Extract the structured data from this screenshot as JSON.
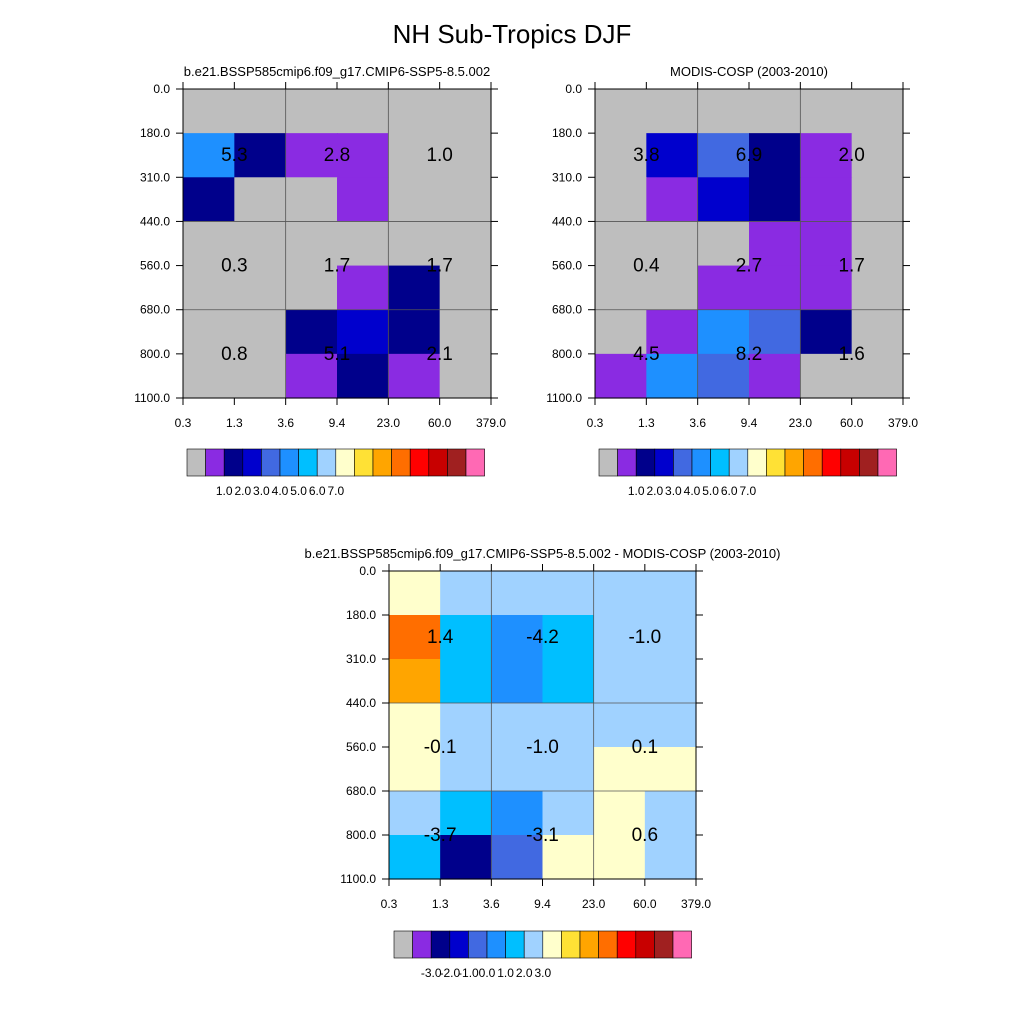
{
  "title": "NH Sub-Tropics DJF",
  "palettes": {
    "model": [
      "#bebebe",
      "#8a2be2",
      "#00008b",
      "#0000cd",
      "#4169e1",
      "#1e90ff",
      "#00bfff",
      "#a0d2ff",
      "#ffffcc",
      "#ffe135",
      "#ffa500",
      "#ff6e00",
      "#ff0000",
      "#c80000",
      "#a02020",
      "#ff69b4"
    ],
    "diff": [
      "#bebebe",
      "#8a2be2",
      "#00008b",
      "#0000cd",
      "#4169e1",
      "#1e90ff",
      "#00bfff",
      "#a0d2ff",
      "#ffffcc",
      "#ffe135",
      "#ffa500",
      "#ff6e00",
      "#ff0000",
      "#c80000",
      "#a02020",
      "#ff69b4"
    ]
  },
  "chart_data": [
    {
      "type": "heatmap",
      "title": "b.e21.BSSP585cmip6.f09_g17.CMIP6-SSP5-8.5.002",
      "x_ticks": [
        "0.3",
        "1.3",
        "3.6",
        "9.4",
        "23.0",
        "60.0",
        "379.0"
      ],
      "y_ticks": [
        "0.0",
        "180.0",
        "310.0",
        "440.0",
        "560.0",
        "680.0",
        "800.0",
        "1100.0"
      ],
      "grid": true,
      "cells": [
        [
          0,
          0,
          0,
          0,
          0,
          0
        ],
        [
          5,
          2,
          1,
          1,
          0,
          0
        ],
        [
          2,
          0,
          0,
          1,
          0,
          0
        ],
        [
          0,
          0,
          0,
          0,
          0,
          0
        ],
        [
          0,
          0,
          0,
          1,
          2,
          0
        ],
        [
          0,
          0,
          2,
          3,
          2,
          0
        ],
        [
          0,
          0,
          1,
          2,
          1,
          0
        ]
      ],
      "labels": [
        "5.3",
        "2.8",
        "1.0",
        "0.3",
        "1.7",
        "1.7",
        "0.8",
        "5.1",
        "2.1"
      ],
      "colorbar": [
        "1.0",
        "2.0",
        "3.0",
        "4.0",
        "5.0",
        "6.0",
        "7.0"
      ],
      "palette": "model"
    },
    {
      "type": "heatmap",
      "title": "MODIS-COSP (2003-2010)",
      "x_ticks": [
        "0.3",
        "1.3",
        "3.6",
        "9.4",
        "23.0",
        "60.0",
        "379.0"
      ],
      "y_ticks": [
        "0.0",
        "180.0",
        "310.0",
        "440.0",
        "560.0",
        "680.0",
        "800.0",
        "1100.0"
      ],
      "grid": true,
      "cells": [
        [
          0,
          0,
          0,
          0,
          0,
          0
        ],
        [
          0,
          3,
          4,
          2,
          1,
          0
        ],
        [
          0,
          1,
          3,
          2,
          1,
          0
        ],
        [
          0,
          0,
          0,
          1,
          1,
          0
        ],
        [
          0,
          0,
          1,
          1,
          1,
          0
        ],
        [
          0,
          1,
          5,
          4,
          2,
          0
        ],
        [
          1,
          5,
          4,
          1,
          0,
          0
        ]
      ],
      "labels": [
        "3.8",
        "6.9",
        "2.0",
        "0.4",
        "2.7",
        "1.7",
        "4.5",
        "8.2",
        "1.6"
      ],
      "colorbar": [
        "1.0",
        "2.0",
        "3.0",
        "4.0",
        "5.0",
        "6.0",
        "7.0"
      ],
      "palette": "model"
    },
    {
      "type": "heatmap",
      "title": "b.e21.BSSP585cmip6.f09_g17.CMIP6-SSP5-8.5.002 - MODIS-COSP (2003-2010)",
      "x_ticks": [
        "0.3",
        "1.3",
        "3.6",
        "9.4",
        "23.0",
        "60.0",
        "379.0"
      ],
      "y_ticks": [
        "0.0",
        "180.0",
        "310.0",
        "440.0",
        "560.0",
        "680.0",
        "800.0",
        "1100.0"
      ],
      "grid": true,
      "cells": [
        [
          8,
          7,
          7,
          7,
          7,
          7
        ],
        [
          11,
          6,
          5,
          6,
          7,
          7
        ],
        [
          10,
          6,
          5,
          6,
          7,
          7
        ],
        [
          8,
          7,
          7,
          7,
          7,
          7
        ],
        [
          8,
          7,
          7,
          7,
          8,
          8
        ],
        [
          7,
          6,
          5,
          7,
          8,
          7
        ],
        [
          6,
          2,
          4,
          8,
          8,
          7
        ]
      ],
      "labels": [
        "1.4",
        "-4.2",
        "-1.0",
        "-0.1",
        "-1.0",
        "0.1",
        "-3.7",
        "-3.1",
        "0.6"
      ],
      "colorbar": [
        "-3.0",
        "-2.0",
        "-1.0",
        "0.0",
        "1.0",
        "2.0",
        "3.0"
      ],
      "palette": "diff"
    }
  ]
}
